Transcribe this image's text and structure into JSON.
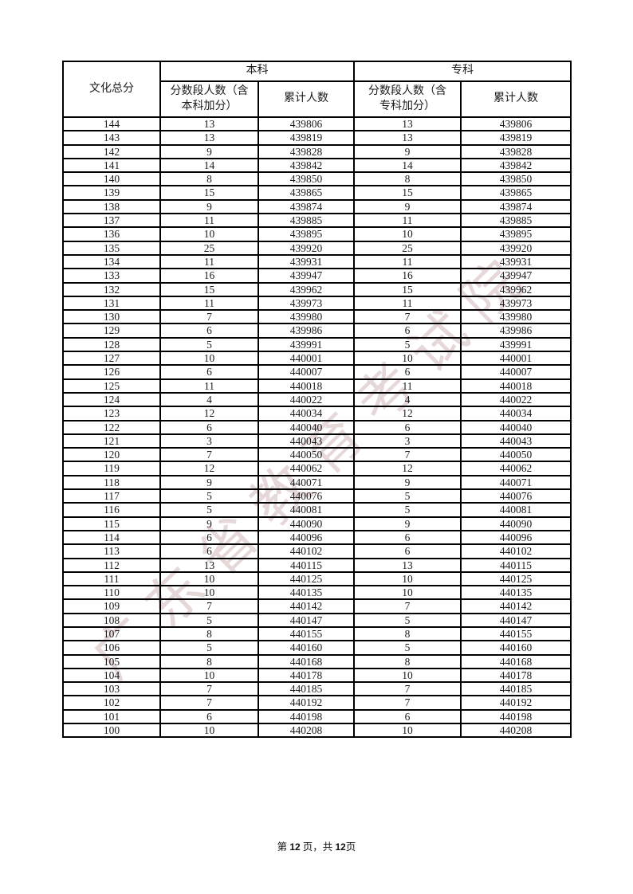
{
  "page": {
    "watermark": "广东省教育考试院",
    "footer": {
      "parts": [
        "第 ",
        "12",
        " 页，共 ",
        "12",
        "页"
      ]
    }
  },
  "colors": {
    "border": "#000000",
    "text": "#1b1b1b",
    "watermark_pink": "#c8a8a8"
  },
  "table": {
    "header": {
      "score_label": "文化总分",
      "benke_group_label": "本科",
      "zhuanke_group_label": "专科",
      "benke_seg_label": "分数段人数（含\n本科加分）",
      "benke_cum_label": "累计人数",
      "zhuanke_seg_label": "分数段人数（含\n专科加分）",
      "zhuanke_cum_label": "累计人数"
    },
    "rows": [
      {
        "score": "144",
        "bk_seg": "13",
        "bk_cum": "439806",
        "zk_seg": "13",
        "zk_cum": "439806"
      },
      {
        "score": "143",
        "bk_seg": "13",
        "bk_cum": "439819",
        "zk_seg": "13",
        "zk_cum": "439819"
      },
      {
        "score": "142",
        "bk_seg": "9",
        "bk_cum": "439828",
        "zk_seg": "9",
        "zk_cum": "439828"
      },
      {
        "score": "141",
        "bk_seg": "14",
        "bk_cum": "439842",
        "zk_seg": "14",
        "zk_cum": "439842"
      },
      {
        "score": "140",
        "bk_seg": "8",
        "bk_cum": "439850",
        "zk_seg": "8",
        "zk_cum": "439850"
      },
      {
        "score": "139",
        "bk_seg": "15",
        "bk_cum": "439865",
        "zk_seg": "15",
        "zk_cum": "439865"
      },
      {
        "score": "138",
        "bk_seg": "9",
        "bk_cum": "439874",
        "zk_seg": "9",
        "zk_cum": "439874"
      },
      {
        "score": "137",
        "bk_seg": "11",
        "bk_cum": "439885",
        "zk_seg": "11",
        "zk_cum": "439885"
      },
      {
        "score": "136",
        "bk_seg": "10",
        "bk_cum": "439895",
        "zk_seg": "10",
        "zk_cum": "439895"
      },
      {
        "score": "135",
        "bk_seg": "25",
        "bk_cum": "439920",
        "zk_seg": "25",
        "zk_cum": "439920"
      },
      {
        "score": "134",
        "bk_seg": "11",
        "bk_cum": "439931",
        "zk_seg": "11",
        "zk_cum": "439931"
      },
      {
        "score": "133",
        "bk_seg": "16",
        "bk_cum": "439947",
        "zk_seg": "16",
        "zk_cum": "439947"
      },
      {
        "score": "132",
        "bk_seg": "15",
        "bk_cum": "439962",
        "zk_seg": "15",
        "zk_cum": "439962"
      },
      {
        "score": "131",
        "bk_seg": "11",
        "bk_cum": "439973",
        "zk_seg": "11",
        "zk_cum": "439973"
      },
      {
        "score": "130",
        "bk_seg": "7",
        "bk_cum": "439980",
        "zk_seg": "7",
        "zk_cum": "439980"
      },
      {
        "score": "129",
        "bk_seg": "6",
        "bk_cum": "439986",
        "zk_seg": "6",
        "zk_cum": "439986"
      },
      {
        "score": "128",
        "bk_seg": "5",
        "bk_cum": "439991",
        "zk_seg": "5",
        "zk_cum": "439991"
      },
      {
        "score": "127",
        "bk_seg": "10",
        "bk_cum": "440001",
        "zk_seg": "10",
        "zk_cum": "440001"
      },
      {
        "score": "126",
        "bk_seg": "6",
        "bk_cum": "440007",
        "zk_seg": "6",
        "zk_cum": "440007"
      },
      {
        "score": "125",
        "bk_seg": "11",
        "bk_cum": "440018",
        "zk_seg": "11",
        "zk_cum": "440018"
      },
      {
        "score": "124",
        "bk_seg": "4",
        "bk_cum": "440022",
        "zk_seg": "4",
        "zk_cum": "440022"
      },
      {
        "score": "123",
        "bk_seg": "12",
        "bk_cum": "440034",
        "zk_seg": "12",
        "zk_cum": "440034"
      },
      {
        "score": "122",
        "bk_seg": "6",
        "bk_cum": "440040",
        "zk_seg": "6",
        "zk_cum": "440040"
      },
      {
        "score": "121",
        "bk_seg": "3",
        "bk_cum": "440043",
        "zk_seg": "3",
        "zk_cum": "440043"
      },
      {
        "score": "120",
        "bk_seg": "7",
        "bk_cum": "440050",
        "zk_seg": "7",
        "zk_cum": "440050"
      },
      {
        "score": "119",
        "bk_seg": "12",
        "bk_cum": "440062",
        "zk_seg": "12",
        "zk_cum": "440062"
      },
      {
        "score": "118",
        "bk_seg": "9",
        "bk_cum": "440071",
        "zk_seg": "9",
        "zk_cum": "440071"
      },
      {
        "score": "117",
        "bk_seg": "5",
        "bk_cum": "440076",
        "zk_seg": "5",
        "zk_cum": "440076"
      },
      {
        "score": "116",
        "bk_seg": "5",
        "bk_cum": "440081",
        "zk_seg": "5",
        "zk_cum": "440081"
      },
      {
        "score": "115",
        "bk_seg": "9",
        "bk_cum": "440090",
        "zk_seg": "9",
        "zk_cum": "440090"
      },
      {
        "score": "114",
        "bk_seg": "6",
        "bk_cum": "440096",
        "zk_seg": "6",
        "zk_cum": "440096"
      },
      {
        "score": "113",
        "bk_seg": "6",
        "bk_cum": "440102",
        "zk_seg": "6",
        "zk_cum": "440102"
      },
      {
        "score": "112",
        "bk_seg": "13",
        "bk_cum": "440115",
        "zk_seg": "13",
        "zk_cum": "440115"
      },
      {
        "score": "111",
        "bk_seg": "10",
        "bk_cum": "440125",
        "zk_seg": "10",
        "zk_cum": "440125"
      },
      {
        "score": "110",
        "bk_seg": "10",
        "bk_cum": "440135",
        "zk_seg": "10",
        "zk_cum": "440135"
      },
      {
        "score": "109",
        "bk_seg": "7",
        "bk_cum": "440142",
        "zk_seg": "7",
        "zk_cum": "440142"
      },
      {
        "score": "108",
        "bk_seg": "5",
        "bk_cum": "440147",
        "zk_seg": "5",
        "zk_cum": "440147"
      },
      {
        "score": "107",
        "bk_seg": "8",
        "bk_cum": "440155",
        "zk_seg": "8",
        "zk_cum": "440155"
      },
      {
        "score": "106",
        "bk_seg": "5",
        "bk_cum": "440160",
        "zk_seg": "5",
        "zk_cum": "440160"
      },
      {
        "score": "105",
        "bk_seg": "8",
        "bk_cum": "440168",
        "zk_seg": "8",
        "zk_cum": "440168"
      },
      {
        "score": "104",
        "bk_seg": "10",
        "bk_cum": "440178",
        "zk_seg": "10",
        "zk_cum": "440178"
      },
      {
        "score": "103",
        "bk_seg": "7",
        "bk_cum": "440185",
        "zk_seg": "7",
        "zk_cum": "440185"
      },
      {
        "score": "102",
        "bk_seg": "7",
        "bk_cum": "440192",
        "zk_seg": "7",
        "zk_cum": "440192"
      },
      {
        "score": "101",
        "bk_seg": "6",
        "bk_cum": "440198",
        "zk_seg": "6",
        "zk_cum": "440198"
      },
      {
        "score": "100",
        "bk_seg": "10",
        "bk_cum": "440208",
        "zk_seg": "10",
        "zk_cum": "440208"
      }
    ]
  }
}
